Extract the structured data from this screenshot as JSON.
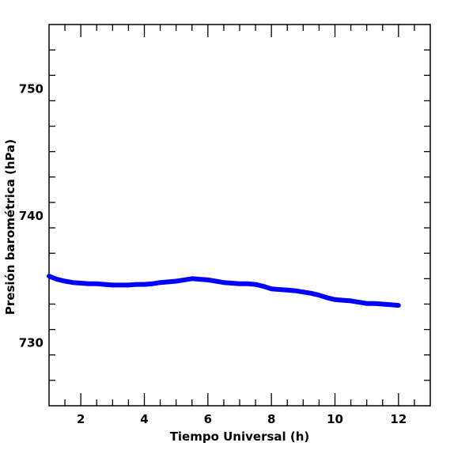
{
  "chart_data": {
    "type": "line",
    "title": "",
    "xlabel": "Tiempo Universal (h)",
    "ylabel": "Presión barométrica (hPa)",
    "xlim": [
      1,
      13
    ],
    "ylim": [
      725,
      755
    ],
    "xticks": [
      2,
      4,
      6,
      8,
      10,
      12
    ],
    "xtick_labels": [
      "2",
      "4",
      "6",
      "8",
      "10",
      "12"
    ],
    "yticks": [
      730,
      740,
      750
    ],
    "ytick_labels": [
      "730",
      "740",
      "750"
    ],
    "grid": false,
    "series": [
      {
        "color": "#0000ff",
        "x": [
          1.0,
          1.25,
          1.5,
          1.75,
          2.0,
          2.25,
          2.5,
          2.75,
          3.0,
          3.25,
          3.5,
          3.75,
          4.0,
          4.25,
          4.5,
          4.75,
          5.0,
          5.25,
          5.5,
          5.75,
          6.0,
          6.25,
          6.5,
          6.75,
          7.0,
          7.25,
          7.5,
          7.75,
          8.0,
          8.25,
          8.5,
          8.75,
          9.0,
          9.25,
          9.5,
          9.75,
          10.0,
          10.25,
          10.5,
          10.75,
          11.0,
          11.25,
          11.5,
          11.75,
          12.0
        ],
        "y": [
          735.2,
          734.95,
          734.8,
          734.7,
          734.65,
          734.6,
          734.6,
          734.55,
          734.5,
          734.5,
          734.5,
          734.55,
          734.55,
          734.6,
          734.7,
          734.75,
          734.8,
          734.9,
          735.0,
          734.95,
          734.9,
          734.8,
          734.7,
          734.65,
          734.6,
          734.6,
          734.55,
          734.4,
          734.2,
          734.15,
          734.1,
          734.05,
          733.95,
          733.85,
          733.7,
          733.5,
          733.35,
          733.3,
          733.25,
          733.15,
          733.05,
          733.05,
          733.0,
          732.95,
          732.9
        ]
      }
    ]
  }
}
